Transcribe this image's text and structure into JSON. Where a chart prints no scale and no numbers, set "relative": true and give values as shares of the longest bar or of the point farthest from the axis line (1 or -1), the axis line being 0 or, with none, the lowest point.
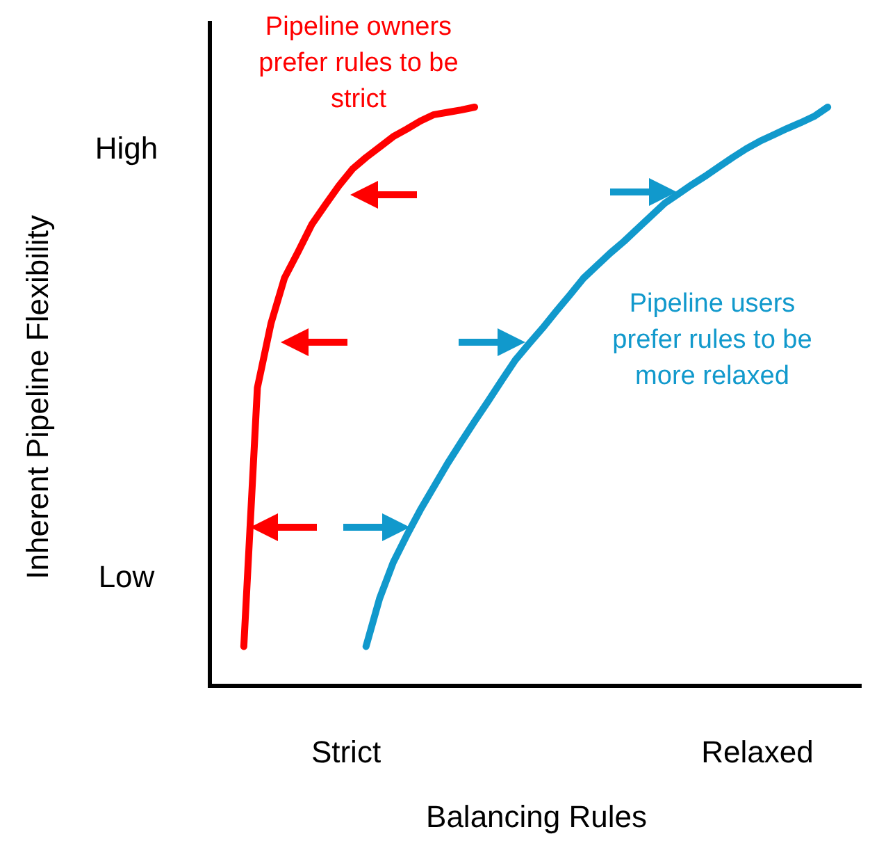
{
  "chart_data": {
    "type": "line",
    "xlabel": "Balancing Rules",
    "ylabel": "Inherent Pipeline Flexibility",
    "relative": true,
    "marker": "none",
    "line_style": "solid",
    "categories": [
      null,
      null,
      null,
      null,
      null,
      null,
      null,
      null,
      null,
      null,
      null,
      null,
      null,
      null,
      null,
      null,
      null,
      null,
      null,
      null,
      null,
      null,
      null,
      null,
      null,
      null,
      null,
      null,
      null,
      null,
      null,
      null,
      null,
      null,
      null,
      null,
      null,
      null,
      null,
      null,
      null,
      null,
      null,
      null,
      null,
      null,
      null,
      null
    ],
    "series": [
      {
        "color": "#ff0000",
        "values": [
          null,
          null,
          0.068,
          0.515,
          0.626,
          0.705,
          0.75,
          0.797,
          0.831,
          0.864,
          0.893,
          0.913,
          0.931,
          0.949,
          0.962,
          0.976,
          0.987,
          0.991,
          0.995,
          1,
          null,
          null,
          null,
          null,
          null,
          null,
          null,
          null,
          null,
          null,
          null,
          null,
          null,
          null,
          null,
          null,
          null,
          null,
          null,
          null,
          null,
          null,
          null,
          null,
          null,
          null,
          null,
          null
        ]
      },
      {
        "color": "#1199cc",
        "values": [
          null,
          null,
          null,
          null,
          null,
          null,
          null,
          null,
          null,
          null,
          null,
          0.068,
          0.151,
          0.213,
          0.26,
          0.304,
          0.344,
          0.384,
          0.421,
          0.457,
          0.492,
          0.528,
          0.563,
          0.591,
          0.618,
          0.647,
          0.675,
          0.704,
          0.726,
          0.748,
          0.768,
          0.79,
          0.812,
          0.834,
          0.85,
          0.866,
          0.881,
          0.897,
          0.913,
          0.928,
          0.941,
          0.952,
          0.963,
          0.973,
          0.984,
          1,
          null,
          null
        ]
      }
    ],
    "annotations": [
      "Pipeline owners prefer rules to be strict",
      "Pipeline users prefer rules to be more relaxed",
      "Strict",
      "Relaxed",
      "Low",
      "High"
    ]
  }
}
